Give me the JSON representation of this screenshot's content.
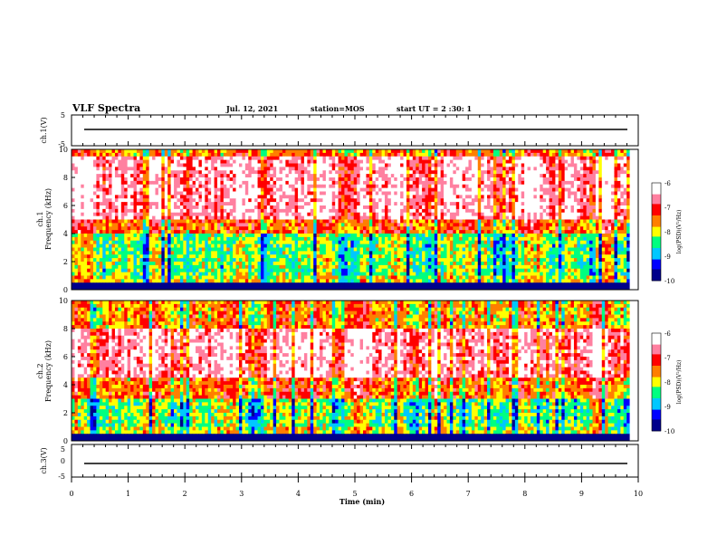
{
  "header": {
    "title": "VLF Spectra",
    "date": "Jul. 12, 2021",
    "station": "station=MOS",
    "start": "start UT =  2 :30: 1"
  },
  "chart_data": [
    {
      "type": "line",
      "name": "ch1-waveform",
      "ylabel": "ch.1(V)",
      "ylim": [
        -5,
        5
      ],
      "y_ticks": [
        "5",
        "-5"
      ],
      "x": [
        0,
        10
      ],
      "values": [
        -0.2,
        -0.2
      ]
    },
    {
      "type": "heatmap",
      "name": "ch1-spectrogram",
      "ylabel": "ch.1\nFrequency (kHz)",
      "ylim": [
        0,
        10
      ],
      "y_ticks": [
        "0",
        "2",
        "4",
        "6",
        "8",
        "10"
      ],
      "xlim": [
        0,
        9.85
      ],
      "colorbar": {
        "label": "log(PSD)(V²/Hz)",
        "range": [
          -10,
          -6
        ],
        "ticks": [
          "-6",
          "-7",
          "-8",
          "-9",
          "-10"
        ]
      },
      "dominant_band_khz": [
        5,
        9.5
      ],
      "quiet_band_khz": [
        1,
        4
      ]
    },
    {
      "type": "heatmap",
      "name": "ch2-spectrogram",
      "ylabel": "ch.2\nFrequency (kHz)",
      "ylim": [
        0,
        10
      ],
      "y_ticks": [
        "0",
        "2",
        "4",
        "6",
        "8",
        "10"
      ],
      "xlim": [
        0,
        9.85
      ],
      "colorbar": {
        "label": "log(PSD)(V²/Hz)",
        "range": [
          -10,
          -6
        ],
        "ticks": [
          "-6",
          "-7",
          "-8",
          "-9",
          "-10"
        ]
      },
      "dominant_band_khz": [
        4.5,
        8
      ],
      "quiet_band_khz": [
        1,
        3
      ]
    },
    {
      "type": "line",
      "name": "ch3-waveform",
      "ylabel": "ch.3(V)",
      "ylim": [
        -5,
        5
      ],
      "y_ticks": [
        "5",
        "0",
        "-5"
      ],
      "x": [
        0,
        10
      ],
      "values": [
        -2,
        -2
      ]
    }
  ],
  "x_axis": {
    "label": "Time (min)",
    "range": [
      0,
      10
    ],
    "ticks": [
      "0",
      "1",
      "2",
      "3",
      "4",
      "5",
      "6",
      "7",
      "8",
      "9",
      "10"
    ]
  },
  "colors": {
    "scale": [
      "#00008b",
      "#0000ff",
      "#00c8ff",
      "#00ff80",
      "#ffff00",
      "#ff7f00",
      "#ff0000",
      "#ff80a0",
      "#ffffff"
    ]
  }
}
